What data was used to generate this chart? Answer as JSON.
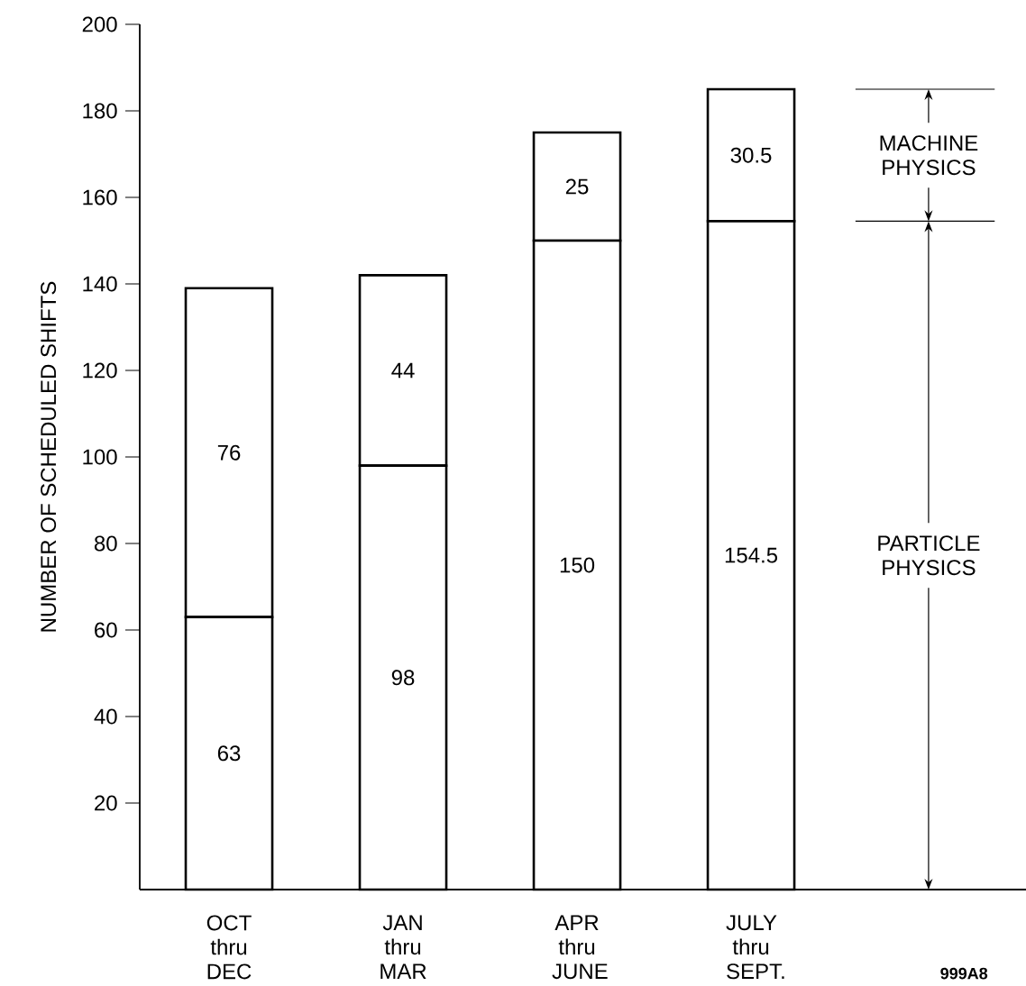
{
  "chart_data": {
    "type": "bar",
    "stacked": true,
    "ylabel": "NUMBER OF SCHEDULED SHIFTS",
    "categories": [
      "OCT thru DEC",
      "JAN thru MAR",
      "APR thru JUNE",
      "JULY thru SEPT."
    ],
    "series": [
      {
        "name": "PARTICLE PHYSICS",
        "color": "#ffffff",
        "values": [
          63,
          98,
          150,
          154.5
        ]
      },
      {
        "name": "MACHINE PHYSICS",
        "color": "#ffffff",
        "values": [
          76,
          44,
          25,
          30.5
        ]
      }
    ],
    "ylim": [
      0,
      200
    ],
    "yticks": [
      20,
      40,
      60,
      80,
      100,
      120,
      140,
      160,
      180,
      200
    ],
    "data_labels": true,
    "annotations": [
      "999A8"
    ]
  }
}
